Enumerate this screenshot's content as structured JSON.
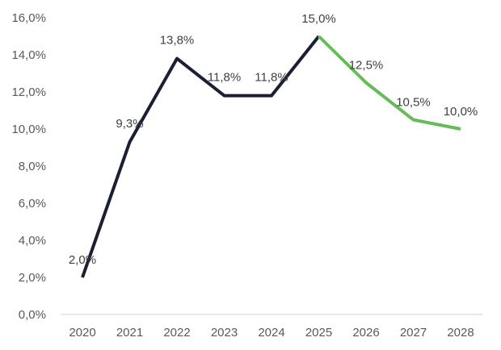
{
  "chart_data": {
    "type": "line",
    "title": "",
    "xlabel": "",
    "ylabel": "",
    "categories": [
      "2020",
      "2021",
      "2022",
      "2023",
      "2024",
      "2025",
      "2026",
      "2027",
      "2028"
    ],
    "ylim": [
      0,
      16
    ],
    "y_ticks": [
      "0,0%",
      "2,0%",
      "4,0%",
      "6,0%",
      "8,0%",
      "10,0%",
      "12,0%",
      "14,0%",
      "16,0%"
    ],
    "grid": false,
    "legend": "none",
    "series": [
      {
        "values": [
          2.0,
          9.3,
          13.8,
          11.8,
          11.8,
          15.0,
          null,
          null,
          null
        ],
        "labels": [
          "2,0%",
          "9,3%",
          "13,8%",
          "11,8%",
          "11,8%",
          "15,0%",
          "",
          "",
          ""
        ],
        "color": "#1a1f33"
      },
      {
        "values": [
          null,
          null,
          null,
          null,
          null,
          15.0,
          12.5,
          10.5,
          10.0
        ],
        "labels": [
          "",
          "",
          "",
          "",
          "",
          "",
          "12,5%",
          "10,5%",
          "10,0%"
        ],
        "color": "#66bb5a"
      }
    ]
  }
}
